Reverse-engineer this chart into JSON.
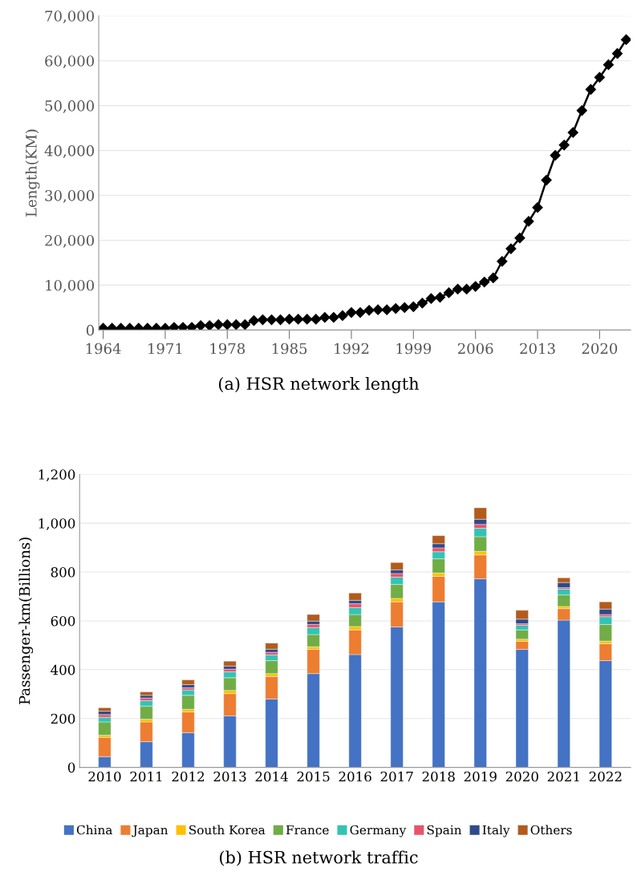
{
  "chart_data": [
    {
      "type": "line",
      "ylabel": "Length(KM)",
      "annotations": [
        "(a) HSR network length"
      ],
      "marker": "diamond",
      "line_style": "solid",
      "grid": "y",
      "legend": false,
      "x": [
        1964,
        1965,
        1966,
        1967,
        1968,
        1969,
        1970,
        1971,
        1972,
        1973,
        1974,
        1975,
        1976,
        1977,
        1978,
        1979,
        1980,
        1981,
        1982,
        1983,
        1984,
        1985,
        1986,
        1987,
        1988,
        1989,
        1990,
        1991,
        1992,
        1993,
        1994,
        1995,
        1996,
        1997,
        1998,
        1999,
        2000,
        2001,
        2002,
        2003,
        2004,
        2005,
        2006,
        2007,
        2008,
        2009,
        2010,
        2011,
        2012,
        2013,
        2014,
        2015,
        2016,
        2017,
        2018,
        2019,
        2020,
        2021,
        2022,
        2023
      ],
      "series": [
        {
          "color": "#000000",
          "values": [
            400,
            400,
            400,
            400,
            400,
            400,
            400,
            400,
            600,
            600,
            600,
            1000,
            1000,
            1200,
            1200,
            1200,
            1200,
            2100,
            2300,
            2300,
            2300,
            2400,
            2400,
            2400,
            2400,
            2800,
            2800,
            3200,
            3900,
            3900,
            4400,
            4500,
            4500,
            4800,
            5000,
            5200,
            6000,
            7000,
            7300,
            8300,
            9100,
            9100,
            9700,
            10700,
            11600,
            15300,
            18100,
            20500,
            24200,
            27300,
            33400,
            38900,
            41200,
            44000,
            48900,
            53600,
            56300,
            59100,
            61600,
            64700
          ]
        }
      ],
      "xlim": [
        1963.5,
        2023.5
      ],
      "xticks": [
        1964,
        1971,
        1978,
        1985,
        1992,
        1999,
        2006,
        2013,
        2020
      ],
      "ylim": [
        0,
        70000
      ],
      "yticks": [
        {
          "value": 0,
          "label": "0"
        },
        {
          "value": 10000,
          "label": "10,000"
        },
        {
          "value": 20000,
          "label": "20,000"
        },
        {
          "value": 30000,
          "label": "30,000"
        },
        {
          "value": 40000,
          "label": "40,000"
        },
        {
          "value": 50000,
          "label": "50,000"
        },
        {
          "value": 60000,
          "label": "60,000"
        },
        {
          "value": 70000,
          "label": "70,000"
        }
      ]
    },
    {
      "type": "bar",
      "stacked": true,
      "ylabel": "Passenger-km(Billions)",
      "annotations": [
        "(b) HSR network traffic"
      ],
      "grid": "y",
      "legend": "bottom",
      "categories": [
        "2010",
        "2011",
        "2012",
        "2013",
        "2014",
        "2015",
        "2016",
        "2017",
        "2018",
        "2019",
        "2020",
        "2021",
        "2022"
      ],
      "series": [
        {
          "name": "China",
          "color": "#4472c4",
          "values": [
            44,
            105,
            142,
            211,
            280,
            384,
            462,
            575,
            678,
            772,
            483,
            603,
            437
          ]
        },
        {
          "name": "Japan",
          "color": "#ed7d31",
          "values": [
            79,
            81,
            85,
            91,
            92,
            99,
            101,
            103,
            104,
            98,
            33,
            47,
            69
          ]
        },
        {
          "name": "South Korea",
          "color": "#ffc000",
          "values": [
            9,
            11,
            11,
            13,
            12,
            11,
            14,
            14,
            14,
            15,
            9,
            9,
            11
          ]
        },
        {
          "name": "France",
          "color": "#70ad47",
          "values": [
            54,
            54,
            57,
            52,
            53,
            50,
            49,
            57,
            58,
            60,
            38,
            47,
            68
          ]
        },
        {
          "name": "Germany",
          "color": "#33c3b5",
          "values": [
            19,
            22,
            22,
            24,
            23,
            28,
            28,
            30,
            29,
            34,
            19,
            24,
            32
          ]
        },
        {
          "name": "Spain",
          "color": "#e8546a",
          "values": [
            11,
            11,
            9,
            11,
            11,
            13,
            16,
            15,
            16,
            16,
            6,
            6,
            9
          ]
        },
        {
          "name": "Italy",
          "color": "#2f4a8a",
          "values": [
            14,
            11,
            13,
            13,
            13,
            14,
            14,
            15,
            17,
            21,
            19,
            21,
            22
          ]
        },
        {
          "name": "Others",
          "color": "#b25b1d",
          "values": [
            14,
            14,
            19,
            20,
            25,
            27,
            30,
            30,
            33,
            47,
            36,
            19,
            30
          ]
        }
      ],
      "ylim": [
        0,
        1200
      ],
      "yticks": [
        {
          "value": 0,
          "label": "0"
        },
        {
          "value": 200,
          "label": "200"
        },
        {
          "value": 400,
          "label": "400"
        },
        {
          "value": 600,
          "label": "600"
        },
        {
          "value": 800,
          "label": "800"
        },
        {
          "value": 1000,
          "label": "1,000"
        },
        {
          "value": 1200,
          "label": "1,200"
        }
      ]
    }
  ]
}
